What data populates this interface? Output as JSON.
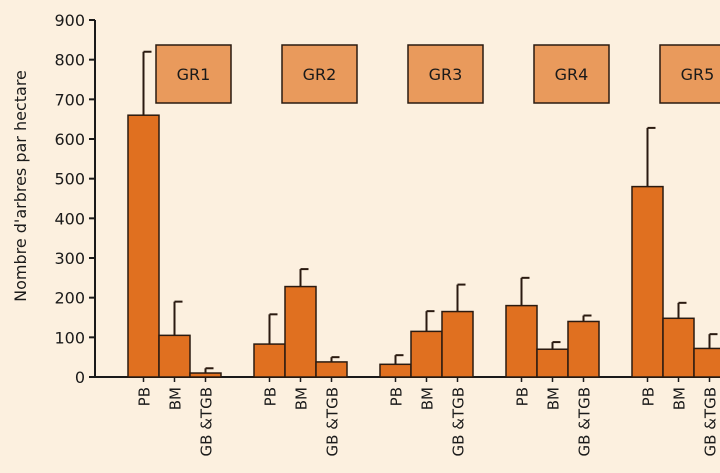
{
  "colors": {
    "background": "#fcf0df",
    "bar_fill": "#e07020",
    "bar_stroke": "#2a1a10",
    "group_box_fill": "#e99a5c",
    "axis": "#1a1a1a"
  },
  "chart_data": {
    "type": "bar",
    "title": "",
    "xlabel": "",
    "ylabel": "Nombre d'arbres par hectare",
    "ylim": [
      0,
      900
    ],
    "yticks": [
      0,
      100,
      200,
      300,
      400,
      500,
      600,
      700,
      800,
      900
    ],
    "error_bars": true,
    "groups": [
      {
        "label": "GR1",
        "bars": [
          {
            "category": "PB",
            "value": 660,
            "error_top": 820
          },
          {
            "category": "BM",
            "value": 105,
            "error_top": 190
          },
          {
            "category": "GB &TGB",
            "value": 10,
            "error_top": 22
          }
        ]
      },
      {
        "label": "GR2",
        "bars": [
          {
            "category": "PB",
            "value": 83,
            "error_top": 158
          },
          {
            "category": "BM",
            "value": 228,
            "error_top": 272
          },
          {
            "category": "GB &TGB",
            "value": 38,
            "error_top": 50
          }
        ]
      },
      {
        "label": "GR3",
        "bars": [
          {
            "category": "PB",
            "value": 32,
            "error_top": 55
          },
          {
            "category": "BM",
            "value": 115,
            "error_top": 166
          },
          {
            "category": "GB &TGB",
            "value": 165,
            "error_top": 233
          }
        ]
      },
      {
        "label": "GR4",
        "bars": [
          {
            "category": "PB",
            "value": 180,
            "error_top": 250
          },
          {
            "category": "BM",
            "value": 70,
            "error_top": 88
          },
          {
            "category": "GB &TGB",
            "value": 140,
            "error_top": 155
          }
        ]
      },
      {
        "label": "GR5",
        "bars": [
          {
            "category": "PB",
            "value": 480,
            "error_top": 628
          },
          {
            "category": "BM",
            "value": 148,
            "error_top": 187
          },
          {
            "category": "GB &TGB",
            "value": 72,
            "error_top": 108
          }
        ]
      }
    ]
  }
}
